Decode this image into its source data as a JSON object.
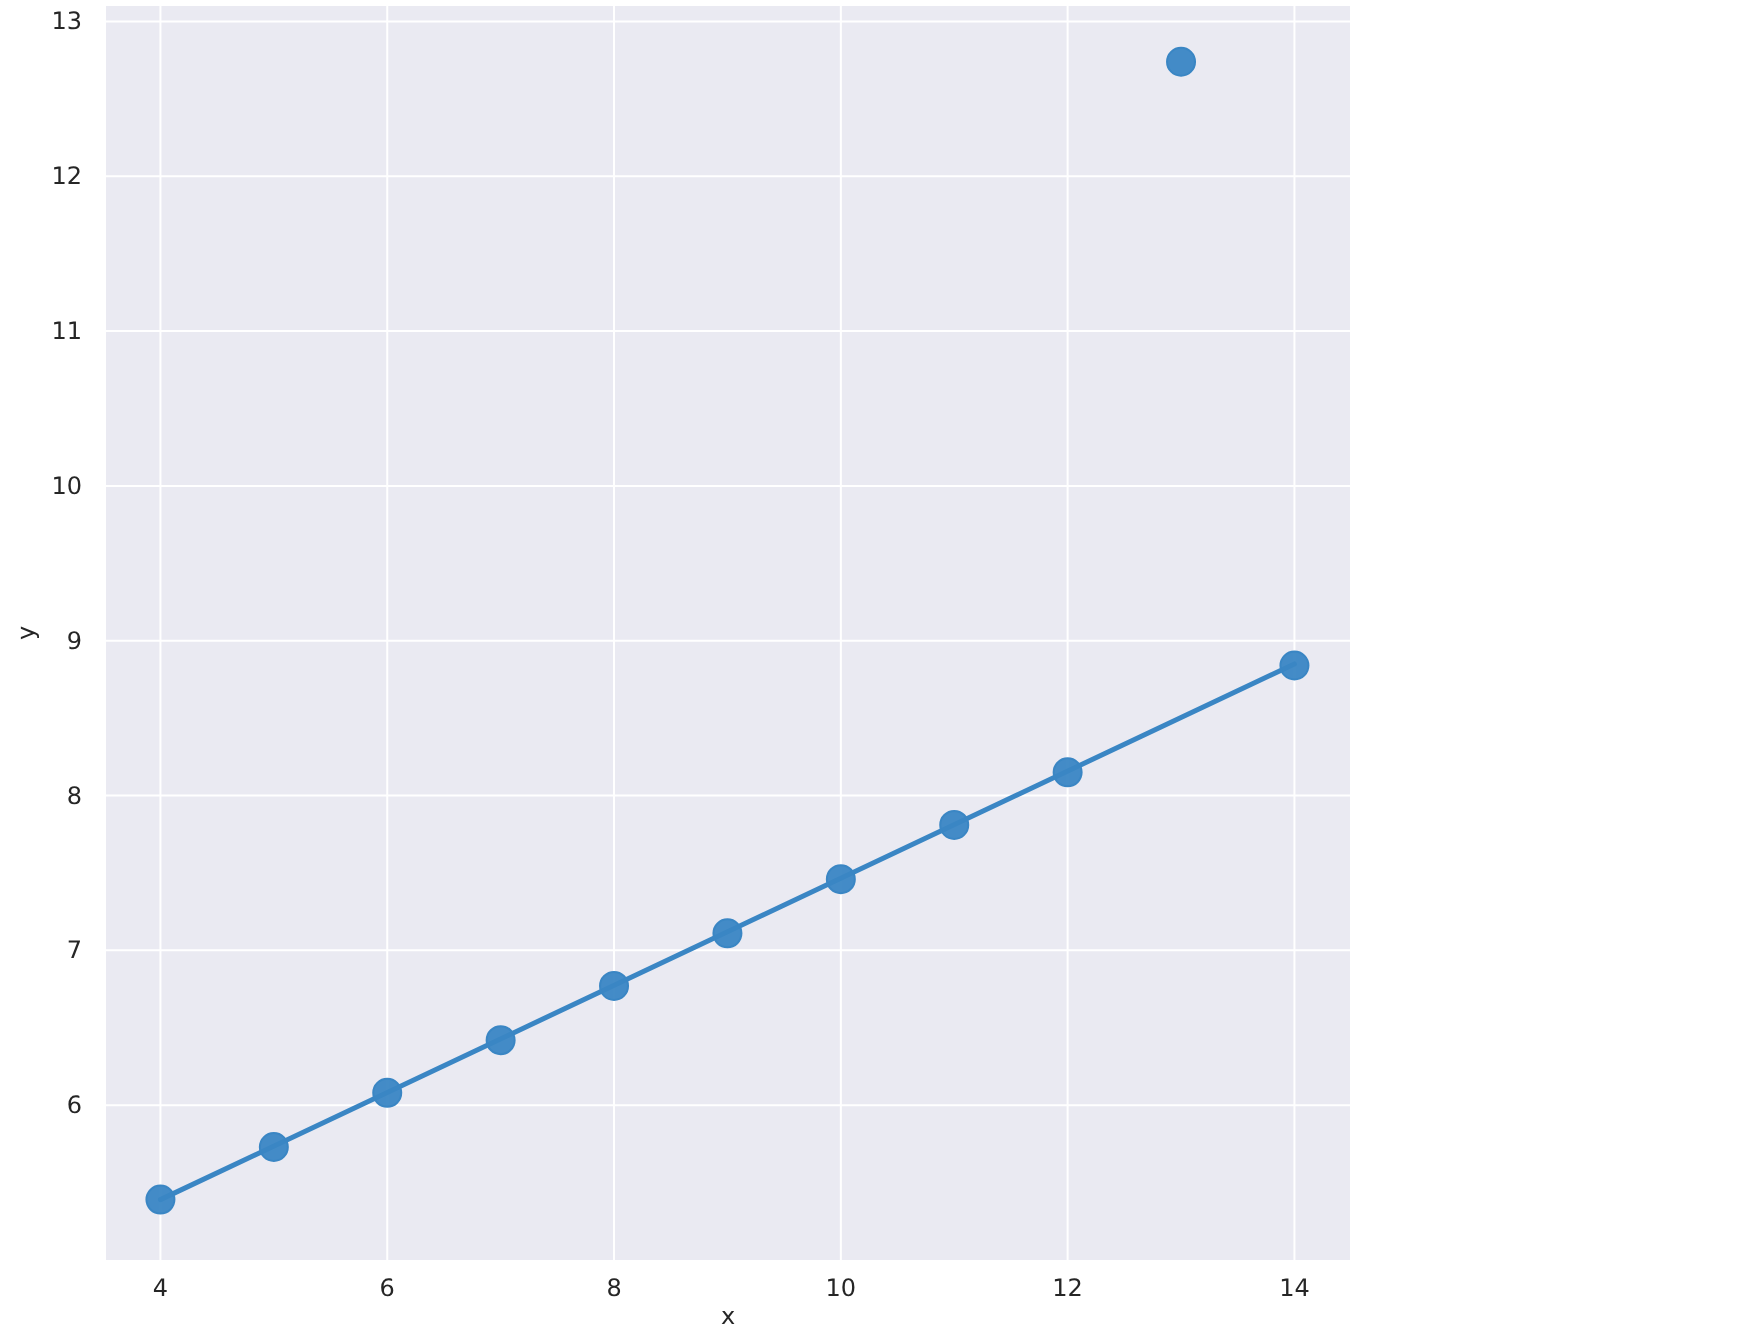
{
  "chart_data": {
    "type": "scatter",
    "xlabel": "x",
    "ylabel": "y",
    "xlim": [
      3.52,
      14.49
    ],
    "ylim": [
      5.0,
      13.1
    ],
    "xticks": [
      4,
      6,
      8,
      10,
      12,
      14
    ],
    "yticks": [
      6,
      7,
      8,
      9,
      10,
      11,
      12,
      13
    ],
    "grid": true,
    "series": [
      {
        "marker": "circle",
        "color": "#3a86c4",
        "x": [
          10,
          8,
          13,
          9,
          11,
          14,
          6,
          4,
          12,
          7,
          5
        ],
        "values": [
          7.46,
          6.77,
          12.74,
          7.11,
          7.81,
          8.84,
          6.08,
          5.39,
          8.15,
          6.42,
          5.73
        ]
      },
      {
        "type": "line",
        "color": "#3a86c4",
        "x": [
          4,
          14
        ],
        "values": [
          5.39,
          8.85
        ]
      }
    ]
  }
}
